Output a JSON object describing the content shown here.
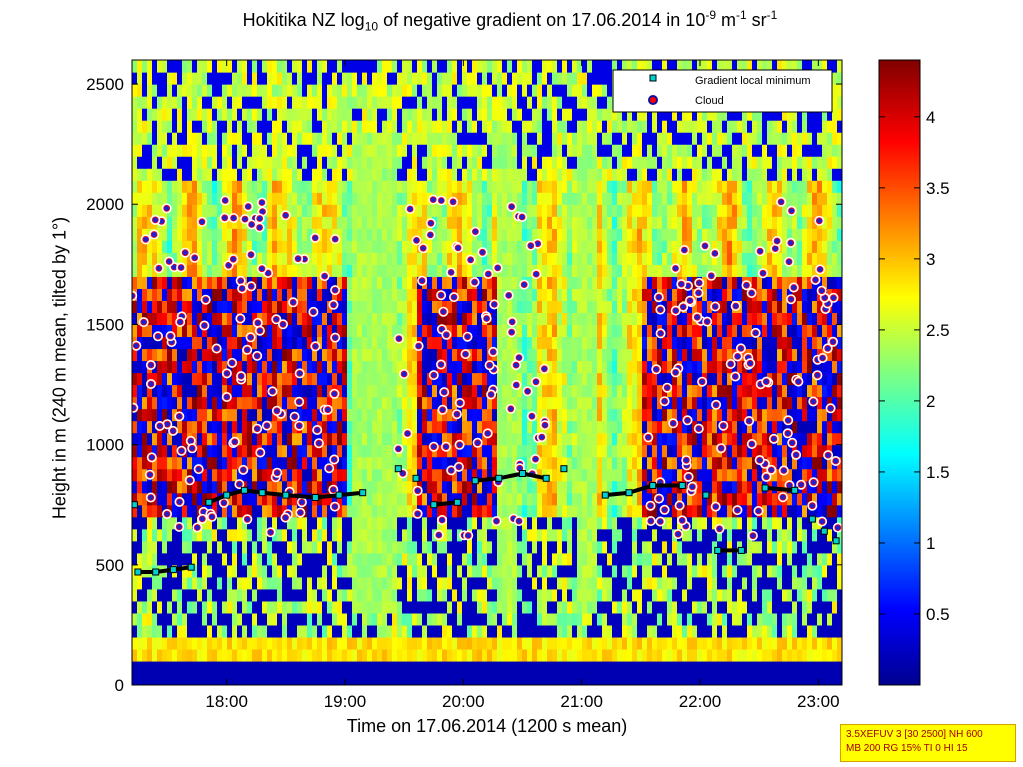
{
  "chart_data": {
    "type": "heatmap",
    "title_parts": {
      "pre": "Hokitika NZ log",
      "sub": "10",
      "mid": " of negative gradient on 17.06.2014 in 10",
      "sup1": "-9",
      "mid2": " m",
      "sup2": "-1",
      "mid3": " sr",
      "sup3": "-1"
    },
    "xlabel": "Time on 17.06.2014 (1200 s mean)",
    "ylabel": "Height in m (240 m mean, tilted by 1°)",
    "xlim_hours": [
      17.2,
      23.2
    ],
    "ylim": [
      0,
      2600
    ],
    "xticks": [
      {
        "value": 18,
        "label": "18:00"
      },
      {
        "value": 19,
        "label": "19:00"
      },
      {
        "value": 20,
        "label": "20:00"
      },
      {
        "value": 21,
        "label": "21:00"
      },
      {
        "value": 22,
        "label": "22:00"
      },
      {
        "value": 23,
        "label": "23:00"
      }
    ],
    "yticks": [
      0,
      500,
      1000,
      1500,
      2000,
      2500
    ],
    "colorbar": {
      "range": [
        0,
        4.4
      ],
      "ticks": [
        0.5,
        1,
        1.5,
        2,
        2.5,
        3,
        3.5,
        4
      ],
      "colormap": "jet"
    },
    "legend": {
      "position": "top-right",
      "entries": [
        {
          "label": "Gradient local minimum",
          "marker": "square",
          "color": "#00d0d0"
        },
        {
          "label": "Cloud",
          "marker": "circle",
          "color": "#ff0000"
        }
      ]
    },
    "gradient_minimum_series": [
      {
        "t": 17.22,
        "h": 750
      },
      {
        "t": 17.25,
        "h": 470
      },
      {
        "t": 17.4,
        "h": 470
      },
      {
        "t": 17.55,
        "h": 480
      },
      {
        "t": 17.7,
        "h": 490
      },
      {
        "t": 17.85,
        "h": 760
      },
      {
        "t": 18.0,
        "h": 790
      },
      {
        "t": 18.15,
        "h": 810
      },
      {
        "t": 18.3,
        "h": 800
      },
      {
        "t": 18.5,
        "h": 790
      },
      {
        "t": 18.75,
        "h": 780
      },
      {
        "t": 18.95,
        "h": 790
      },
      {
        "t": 19.15,
        "h": 800
      },
      {
        "t": 19.45,
        "h": 900
      },
      {
        "t": 19.6,
        "h": 860
      },
      {
        "t": 19.75,
        "h": 750
      },
      {
        "t": 19.95,
        "h": 760
      },
      {
        "t": 20.1,
        "h": 850
      },
      {
        "t": 20.3,
        "h": 860
      },
      {
        "t": 20.5,
        "h": 880
      },
      {
        "t": 20.7,
        "h": 860
      },
      {
        "t": 20.85,
        "h": 900
      },
      {
        "t": 21.2,
        "h": 790
      },
      {
        "t": 21.4,
        "h": 800
      },
      {
        "t": 21.6,
        "h": 830
      },
      {
        "t": 21.85,
        "h": 830
      },
      {
        "t": 22.05,
        "h": 790
      },
      {
        "t": 22.15,
        "h": 560
      },
      {
        "t": 22.35,
        "h": 560
      },
      {
        "t": 22.55,
        "h": 820
      },
      {
        "t": 22.8,
        "h": 810
      },
      {
        "t": 22.95,
        "h": 690
      },
      {
        "t": 23.05,
        "h": 640
      },
      {
        "t": 23.15,
        "h": 600
      }
    ]
  },
  "infobox": {
    "line1": "3.5XEFUV 3 [30 2500] NH 600",
    "line2": "MB 200 RG 15% TI 0 HI 15"
  }
}
